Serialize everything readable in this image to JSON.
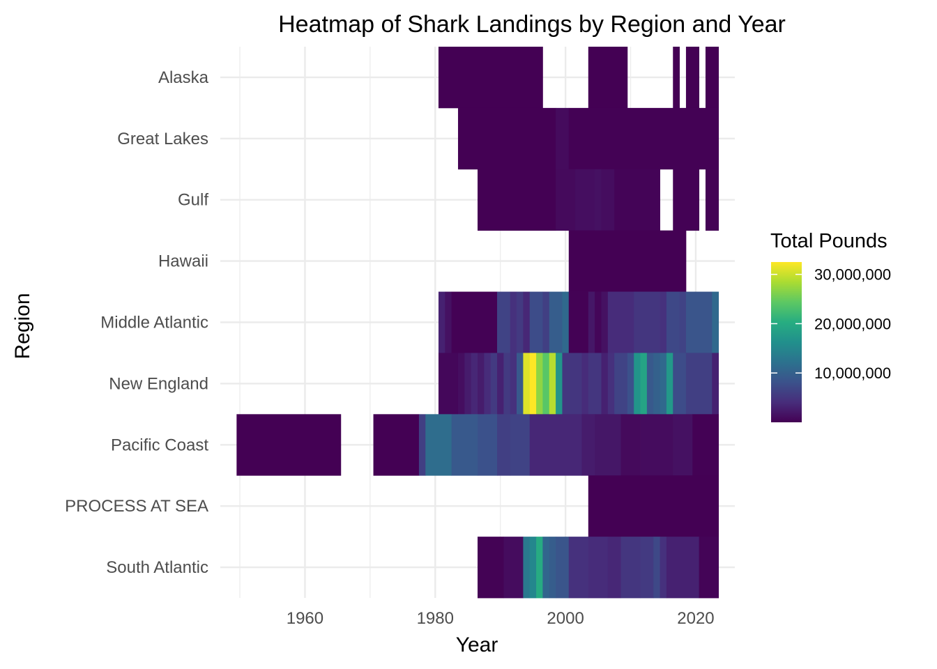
{
  "chart_data": {
    "type": "heatmap",
    "title": "Heatmap of Shark Landings by Region and Year",
    "xlabel": "Year",
    "ylabel": "Region",
    "x_ticks": [
      1960,
      1980,
      2000,
      2020
    ],
    "xlim": [
      1947,
      2026
    ],
    "grid": true,
    "legend_title": "Total Pounds",
    "legend_position": "right",
    "legend_labels": [
      "30,000,000",
      "20,000,000",
      "10,000,000"
    ],
    "legend_breaks": [
      30000000,
      20000000,
      10000000
    ],
    "value_range": [
      0,
      32500000
    ],
    "colormap": [
      "#440154",
      "#472D7B",
      "#3B528B",
      "#2C728E",
      "#21908C",
      "#27AD81",
      "#5DC863",
      "#AADC32",
      "#FDE725"
    ],
    "regions": [
      "Alaska",
      "Great Lakes",
      "Gulf",
      "Hawaii",
      "Middle Atlantic",
      "New England",
      "Pacific Coast",
      "PROCESS AT SEA",
      "South Atlantic"
    ],
    "cells": {
      "Alaska": [
        [
          1981,
          1996,
          30000
        ],
        [
          2004,
          2009,
          30000
        ],
        [
          2017,
          2017,
          30000
        ],
        [
          2019,
          2020,
          30000
        ],
        [
          2022,
          2023,
          30000
        ]
      ],
      "Great Lakes": [
        [
          1984,
          1998,
          20000
        ],
        [
          1999,
          2000,
          900000
        ],
        [
          2001,
          2023,
          60000
        ]
      ],
      "Gulf": [
        [
          1987,
          1998,
          40000
        ],
        [
          1999,
          2001,
          800000
        ],
        [
          2002,
          2004,
          1200000
        ],
        [
          2005,
          2005,
          1500000
        ],
        [
          2006,
          2007,
          1100000
        ],
        [
          2008,
          2014,
          300000
        ],
        [
          2017,
          2020,
          60000
        ],
        [
          2022,
          2023,
          150000
        ]
      ],
      "Hawaii": [
        [
          2001,
          2018,
          40000
        ]
      ],
      "Middle Atlantic": [
        [
          1981,
          1981,
          3000000
        ],
        [
          1982,
          1982,
          1500000
        ],
        [
          1983,
          1989,
          60000
        ],
        [
          1990,
          1991,
          6500000
        ],
        [
          1992,
          1992,
          4500000
        ],
        [
          1993,
          1993,
          5500000
        ],
        [
          1994,
          1994,
          3500000
        ],
        [
          1995,
          1996,
          7500000
        ],
        [
          1997,
          1997,
          6000000
        ],
        [
          1998,
          1999,
          9500000
        ],
        [
          2000,
          2000,
          11000000
        ],
        [
          2001,
          2003,
          60000
        ],
        [
          2004,
          2004,
          2000000
        ],
        [
          2005,
          2005,
          500000
        ],
        [
          2006,
          2006,
          1500000
        ],
        [
          2007,
          2010,
          4000000
        ],
        [
          2011,
          2014,
          5000000
        ],
        [
          2015,
          2015,
          4500000
        ],
        [
          2016,
          2017,
          7000000
        ],
        [
          2018,
          2018,
          6500000
        ],
        [
          2019,
          2022,
          8500000
        ],
        [
          2023,
          2023,
          11000000
        ]
      ],
      "New England": [
        [
          1981,
          1983,
          600000
        ],
        [
          1984,
          1984,
          1200000
        ],
        [
          1985,
          1985,
          2500000
        ],
        [
          1986,
          1986,
          3500000
        ],
        [
          1987,
          1987,
          2500000
        ],
        [
          1988,
          1988,
          4000000
        ],
        [
          1989,
          1989,
          5500000
        ],
        [
          1990,
          1990,
          3000000
        ],
        [
          1991,
          1991,
          5500000
        ],
        [
          1992,
          1992,
          4500000
        ],
        [
          1993,
          1993,
          9000000
        ],
        [
          1994,
          1994,
          31000000
        ],
        [
          1995,
          1995,
          32500000
        ],
        [
          1996,
          1996,
          27000000
        ],
        [
          1997,
          1997,
          24000000
        ],
        [
          1998,
          1998,
          29000000
        ],
        [
          1999,
          1999,
          17000000
        ],
        [
          2000,
          2002,
          5000000
        ],
        [
          2003,
          2003,
          4000000
        ],
        [
          2004,
          2005,
          5000000
        ],
        [
          2006,
          2006,
          3000000
        ],
        [
          2007,
          2007,
          4500000
        ],
        [
          2008,
          2009,
          6500000
        ],
        [
          2010,
          2010,
          8000000
        ],
        [
          2011,
          2011,
          17000000
        ],
        [
          2012,
          2012,
          19000000
        ],
        [
          2013,
          2013,
          9000000
        ],
        [
          2014,
          2014,
          10000000
        ],
        [
          2015,
          2015,
          11000000
        ],
        [
          2016,
          2016,
          17500000
        ],
        [
          2017,
          2018,
          7500000
        ],
        [
          2019,
          2022,
          6000000
        ],
        [
          2023,
          2023,
          3000000
        ]
      ],
      "Pacific Coast": [
        [
          1950,
          1965,
          30000
        ],
        [
          1971,
          1977,
          40000
        ],
        [
          1978,
          1978,
          6000000
        ],
        [
          1979,
          1982,
          11500000
        ],
        [
          1983,
          1986,
          9000000
        ],
        [
          1987,
          1989,
          8000000
        ],
        [
          1990,
          1991,
          6000000
        ],
        [
          1992,
          1994,
          6500000
        ],
        [
          1995,
          2002,
          3500000
        ],
        [
          2003,
          2004,
          2500000
        ],
        [
          2005,
          2008,
          2000000
        ],
        [
          2009,
          2011,
          800000
        ],
        [
          2012,
          2016,
          1000000
        ],
        [
          2017,
          2019,
          1500000
        ],
        [
          2020,
          2023,
          60000
        ]
      ],
      "PROCESS AT SEA": [
        [
          2004,
          2023,
          40000
        ]
      ],
      "South Atlantic": [
        [
          1987,
          1990,
          150000
        ],
        [
          1991,
          1993,
          1000000
        ],
        [
          1994,
          1994,
          13000000
        ],
        [
          1995,
          1995,
          15000000
        ],
        [
          1996,
          1996,
          20000000
        ],
        [
          1997,
          1997,
          10500000
        ],
        [
          1998,
          1998,
          9500000
        ],
        [
          1999,
          2000,
          8500000
        ],
        [
          2001,
          2003,
          4500000
        ],
        [
          2004,
          2006,
          4000000
        ],
        [
          2007,
          2008,
          3500000
        ],
        [
          2009,
          2011,
          5000000
        ],
        [
          2012,
          2013,
          5500000
        ],
        [
          2014,
          2014,
          7000000
        ],
        [
          2015,
          2015,
          4500000
        ],
        [
          2016,
          2020,
          3000000
        ],
        [
          2021,
          2023,
          300000
        ]
      ]
    }
  }
}
